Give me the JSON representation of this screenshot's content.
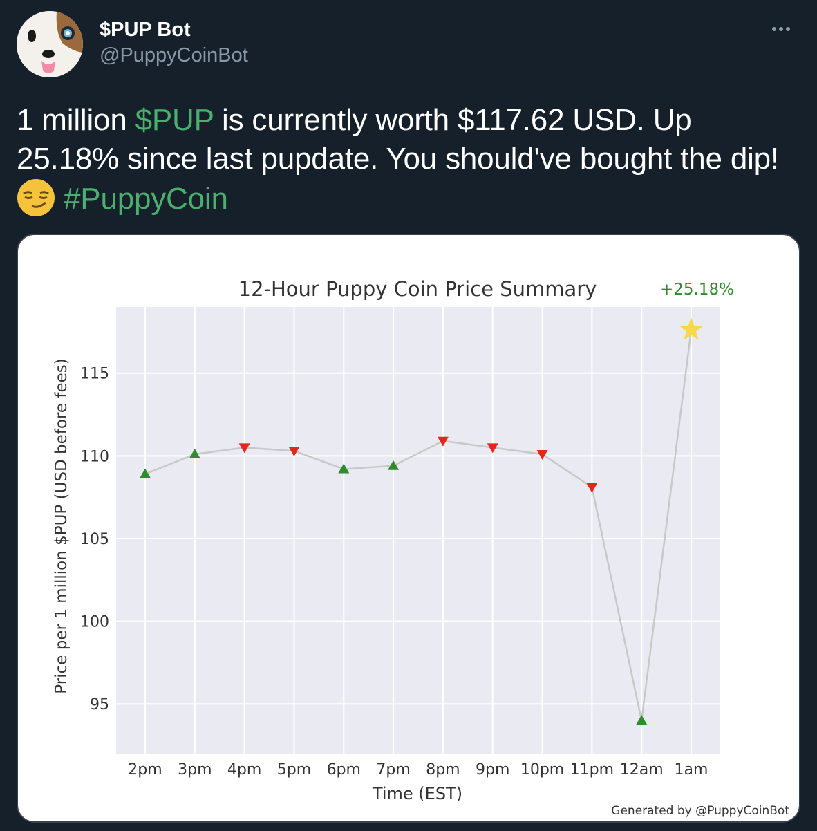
{
  "tweet": {
    "display_name": "$PUP Bot",
    "handle": "@PuppyCoinBot",
    "text_parts": {
      "p1": "1 million ",
      "cashtag": "$PUP",
      "p2": " is currently worth $117.62 USD. Up 25.18% since last pupdate. You should've bought the dip! ",
      "hashtag": "#PuppyCoin"
    },
    "avatar_icon": "puppy-face-icon",
    "emoji_icon": "smirking-face-icon",
    "more_icon": "more-options-icon"
  },
  "chart_data": {
    "type": "line",
    "title": "12-Hour Puppy Coin Price Summary",
    "change_label": "+25.18%",
    "xlabel": "Time (EST)",
    "ylabel": "Price per 1 million $PUP (USD before fees)",
    "categories": [
      "2pm",
      "3pm",
      "4pm",
      "5pm",
      "6pm",
      "7pm",
      "8pm",
      "9pm",
      "10pm",
      "11pm",
      "12am",
      "1am"
    ],
    "values": [
      108.9,
      110.1,
      110.5,
      110.3,
      109.2,
      109.4,
      110.9,
      110.5,
      110.1,
      108.1,
      94.0,
      117.62
    ],
    "markers": [
      "up",
      "up",
      "down",
      "down",
      "up",
      "up",
      "down",
      "down",
      "down",
      "down",
      "up",
      "star"
    ],
    "yticks": [
      95,
      100,
      105,
      110,
      115
    ],
    "ylim": [
      92,
      119
    ],
    "grid": true,
    "footer": "Generated by @PuppyCoinBot",
    "colors": {
      "plot_bg": "#eaeaf2",
      "grid": "#ffffff",
      "line": "#c8c8c8",
      "up": "#2e8b2e",
      "down": "#e0281e",
      "star": "#f7d84a",
      "change": "#2e8b2e"
    }
  }
}
